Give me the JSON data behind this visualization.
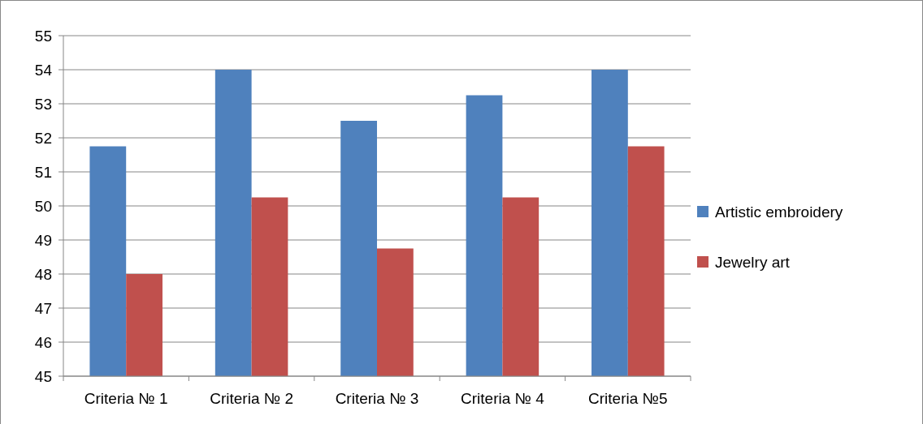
{
  "chart_data": {
    "type": "bar",
    "categories": [
      "Criteria № 1",
      "Criteria № 2",
      "Criteria № 3",
      "Criteria № 4",
      "Criteria №5"
    ],
    "series": [
      {
        "name": "Artistic embroidery",
        "color": "#4f81bd",
        "values": [
          51.75,
          54,
          52.5,
          53.25,
          54
        ]
      },
      {
        "name": "Jewelry art",
        "color": "#c0504d",
        "values": [
          48,
          50.25,
          48.75,
          50.25,
          51.75
        ]
      }
    ],
    "ylim": [
      45,
      55
    ],
    "yticks": [
      45,
      46,
      47,
      48,
      49,
      50,
      51,
      52,
      53,
      54,
      55
    ],
    "grid": "y",
    "legend": "right"
  }
}
